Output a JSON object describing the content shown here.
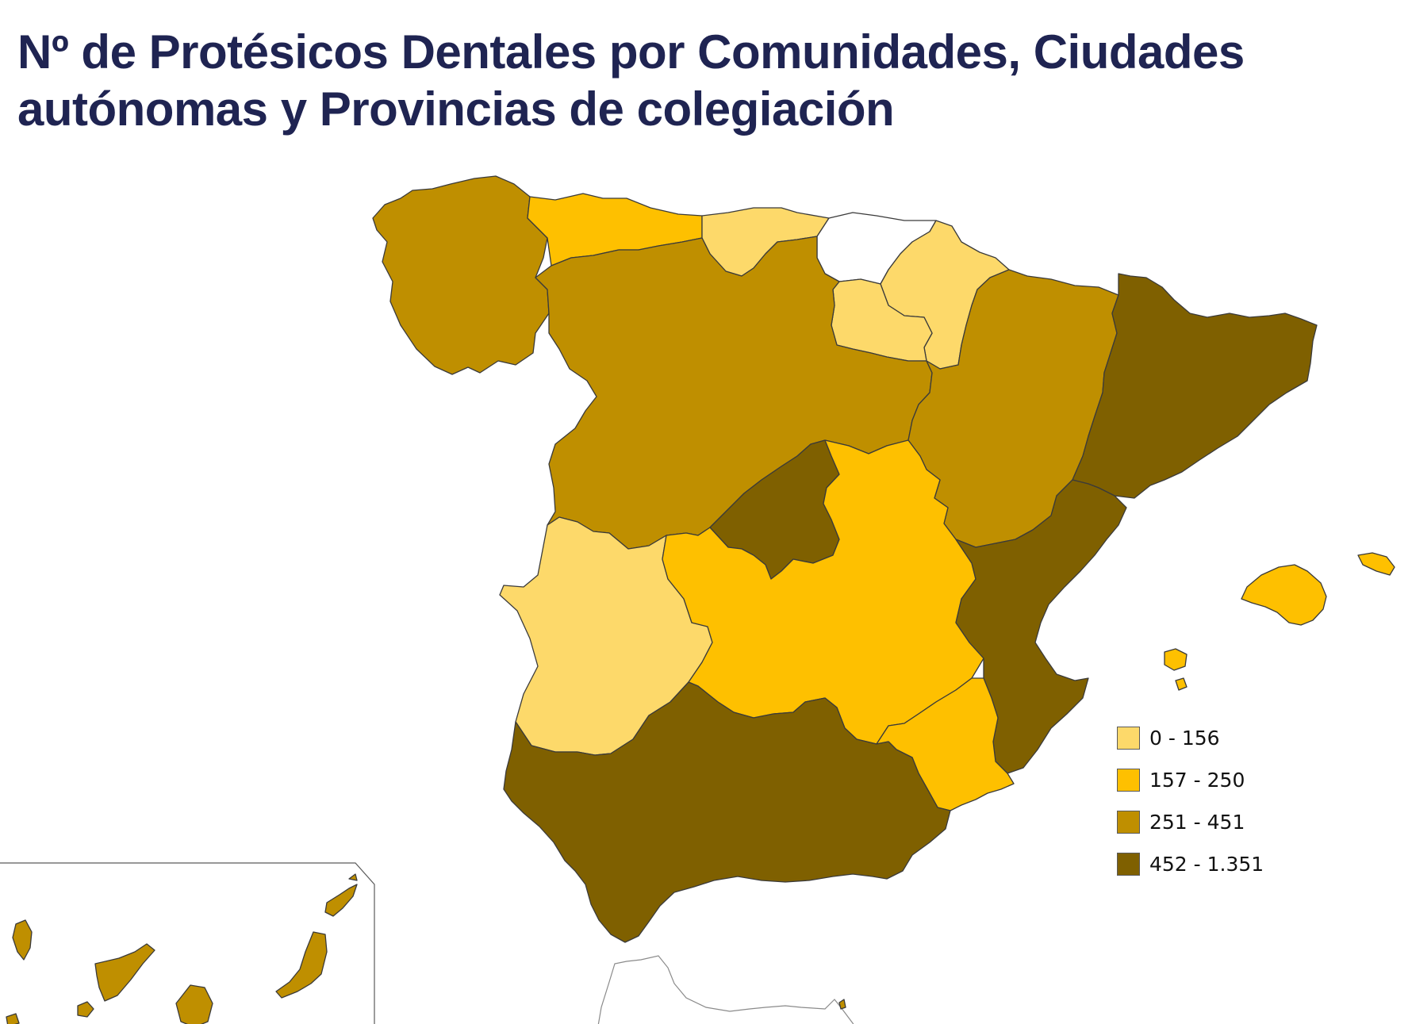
{
  "title": {
    "line1": "Nº de Protésicos Dentales por Comunidades, Ciudades",
    "line2": "autónomas y Provincias de colegiación"
  },
  "colors": {
    "class1": "#fdd96a",
    "class2": "#fec000",
    "class3": "#bf8f00",
    "class4": "#7f6000",
    "nodata": "#ffffff"
  },
  "legend": [
    {
      "label": "0 - 156",
      "color": "#fdd96a"
    },
    {
      "label": "157 - 250",
      "color": "#fec000"
    },
    {
      "label": "251 - 451",
      "color": "#bf8f00"
    },
    {
      "label": "452 - 1.351",
      "color": "#7f6000"
    }
  ],
  "regions": [
    {
      "name": "Galicia",
      "class": "251 - 451"
    },
    {
      "name": "Asturias",
      "class": "157 - 250"
    },
    {
      "name": "Cantabria",
      "class": "0 - 156"
    },
    {
      "name": "País Vasco",
      "class": "sin dato"
    },
    {
      "name": "Navarra",
      "class": "0 - 156"
    },
    {
      "name": "La Rioja",
      "class": "0 - 156"
    },
    {
      "name": "Castilla y León",
      "class": "251 - 451"
    },
    {
      "name": "Aragón",
      "class": "251 - 451"
    },
    {
      "name": "Cataluña",
      "class": "452 - 1.351"
    },
    {
      "name": "Madrid",
      "class": "452 - 1.351"
    },
    {
      "name": "Extremadura",
      "class": "0 - 156"
    },
    {
      "name": "Castilla-La Mancha",
      "class": "157 - 250"
    },
    {
      "name": "Comunidad Valenciana",
      "class": "452 - 1.351"
    },
    {
      "name": "Murcia",
      "class": "157 - 250"
    },
    {
      "name": "Andalucía",
      "class": "452 - 1.351"
    },
    {
      "name": "Islas Baleares",
      "class": "157 - 250"
    },
    {
      "name": "Canarias",
      "class": "251 - 451"
    },
    {
      "name": "Ceuta",
      "class": "sin dato"
    },
    {
      "name": "Melilla",
      "class": "251 - 451"
    }
  ]
}
